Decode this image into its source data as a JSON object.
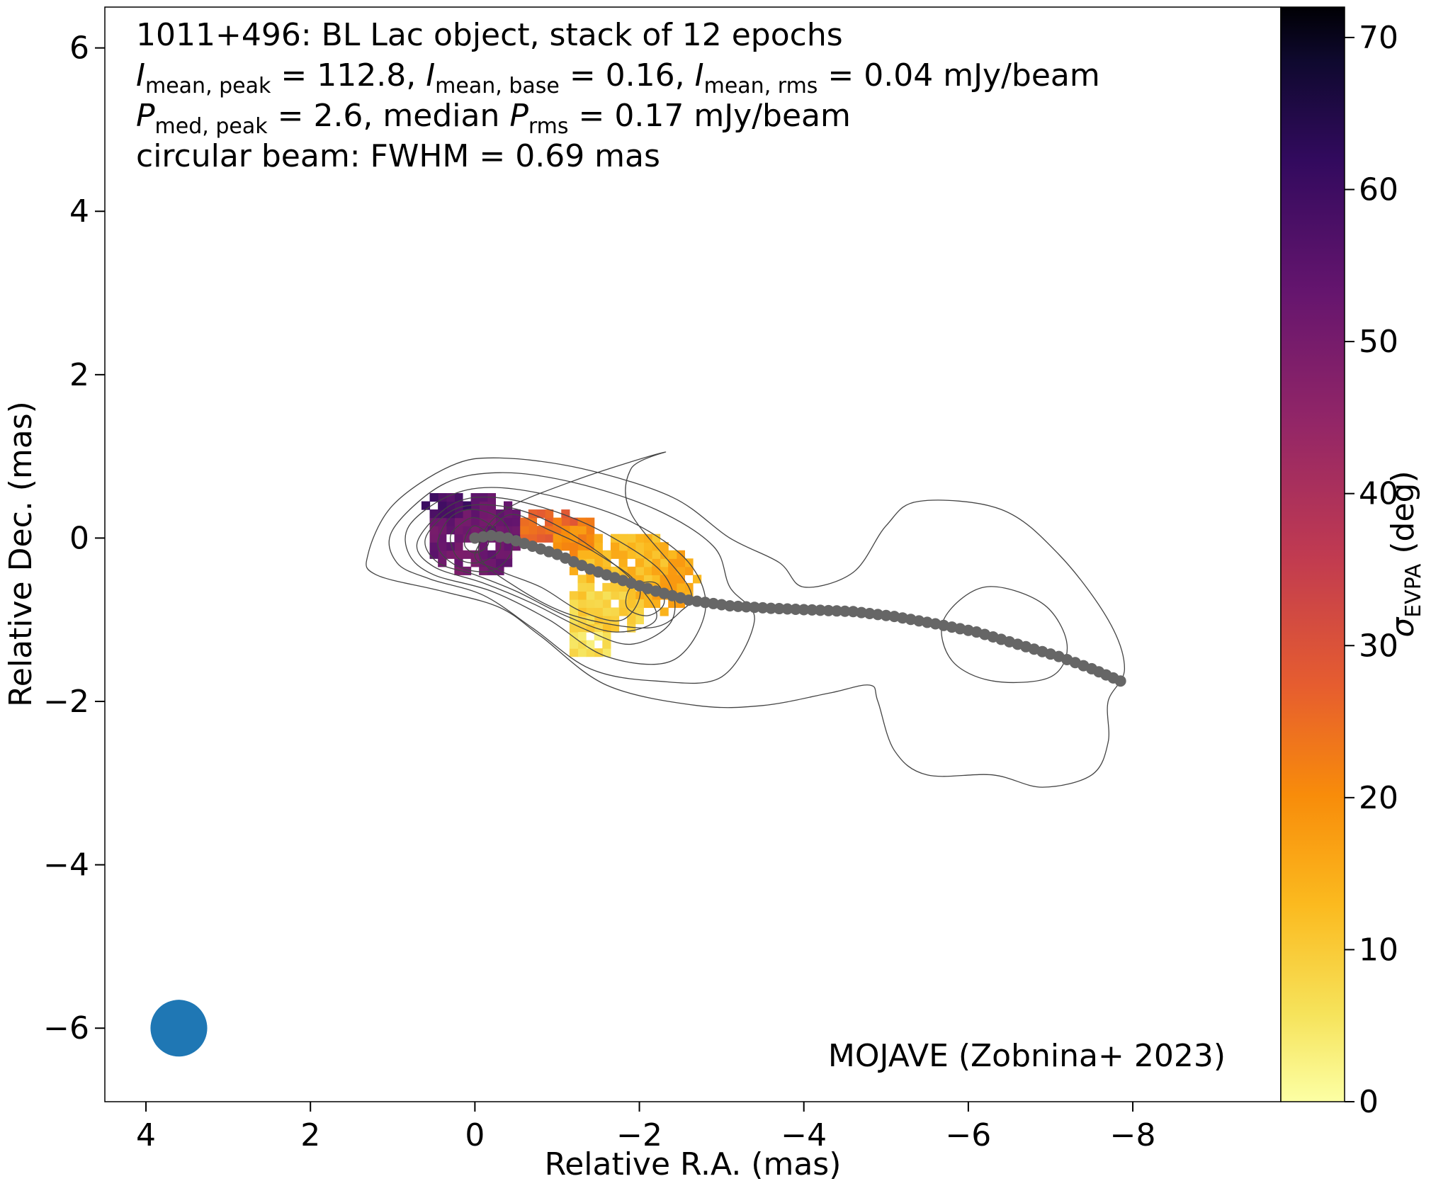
{
  "chart_data": {
    "type": "heatmap",
    "source_name": "1011+496",
    "info_lines": [
      "1011+496: BL Lac object, stack of 12 epochs",
      "I_mean,peak = 112.8, I_mean,base = 0.16, I_mean,rms = 0.04 mJy/beam",
      "P_med,peak = 2.6, median P_rms = 0.17 mJy/beam",
      "circular beam: FWHM = 0.69 mas"
    ],
    "info_parts": {
      "line1": "1011+496: BL Lac object, stack of 12 epochs",
      "I_sym": "I",
      "sub_peak": "mean, peak",
      "eq_peak": " = 112.8, ",
      "sub_base": "mean, base",
      "eq_base": " = 0.16, ",
      "sub_rms": "mean, rms",
      "eq_rms": " = 0.04 mJy/beam",
      "P_sym": "P",
      "sub_pmed": "med, peak",
      "eq_pmed": " = 2.6, median ",
      "sub_prms": "rms",
      "eq_prms": " = 0.17 mJy/beam",
      "line4": "circular beam: FWHM = 0.69 mas"
    },
    "credit": "MOJAVE (Zobnina+ 2023)",
    "xlabel": "Relative R.A. (mas)",
    "ylabel": "Relative Dec. (mas)",
    "colorbar_label": "σ",
    "colorbar_label_sub": "EVPA",
    "colorbar_label_unit": " (deg)",
    "x_axis_reversed": true,
    "xlim": [
      4.5,
      -9.8
    ],
    "ylim": [
      -6.9,
      6.5
    ],
    "xticks": [
      4,
      2,
      0,
      -2,
      -4,
      -6,
      -8
    ],
    "yticks": [
      -6,
      -4,
      -2,
      0,
      2,
      4,
      6
    ],
    "colorbar_range": [
      0,
      72
    ],
    "colorbar_ticks": [
      0,
      10,
      20,
      30,
      40,
      50,
      60,
      70
    ],
    "colormap": "inferno_r",
    "beam": {
      "x": 3.6,
      "y": -6.0,
      "fwhm_mas": 0.69,
      "color": "#1f77b4"
    },
    "colors": {
      "ridgeline": "#666666",
      "contours": "#444444",
      "beam": "#1f77b4"
    },
    "ridgeline": [
      [
        0.0,
        0.0
      ],
      [
        -0.2,
        0.03
      ],
      [
        -0.4,
        0.0
      ],
      [
        -0.7,
        -0.1
      ],
      [
        -1.0,
        -0.2
      ],
      [
        -1.4,
        -0.38
      ],
      [
        -1.8,
        -0.52
      ],
      [
        -2.2,
        -0.65
      ],
      [
        -2.6,
        -0.76
      ],
      [
        -3.1,
        -0.83
      ],
      [
        -3.6,
        -0.86
      ],
      [
        -4.1,
        -0.88
      ],
      [
        -4.6,
        -0.9
      ],
      [
        -5.1,
        -0.96
      ],
      [
        -5.6,
        -1.05
      ],
      [
        -6.1,
        -1.15
      ],
      [
        -6.6,
        -1.3
      ],
      [
        -7.1,
        -1.45
      ],
      [
        -7.5,
        -1.6
      ],
      [
        -7.85,
        -1.75
      ]
    ],
    "contours": [
      [
        [
          -2.3,
          1.05
        ],
        [
          -1.2,
          0.7
        ],
        [
          -0.3,
          0.3
        ],
        [
          -0.05,
          -0.2
        ],
        [
          -0.5,
          -0.6
        ],
        [
          -1.2,
          -0.95
        ],
        [
          -2.1,
          -1.1
        ],
        [
          -2.5,
          -0.9
        ],
        [
          -2.6,
          -0.6
        ],
        [
          -1.9,
          0.3
        ],
        [
          -1.9,
          0.85
        ],
        [
          -2.3,
          1.05
        ]
      ],
      [
        [
          0.3,
          0.88
        ],
        [
          -0.3,
          0.98
        ],
        [
          -1.3,
          0.85
        ],
        [
          -2.4,
          0.5
        ],
        [
          -3.1,
          0.0
        ],
        [
          -3.7,
          -0.3
        ],
        [
          -4.0,
          -0.6
        ],
        [
          -4.6,
          -0.42
        ],
        [
          -5.0,
          0.15
        ],
        [
          -5.4,
          0.45
        ],
        [
          -6.4,
          0.35
        ],
        [
          -7.1,
          -0.2
        ],
        [
          -7.7,
          -1.0
        ],
        [
          -7.9,
          -1.6
        ],
        [
          -7.7,
          -2.0
        ],
        [
          -7.7,
          -2.5
        ],
        [
          -7.5,
          -2.9
        ],
        [
          -6.9,
          -3.05
        ],
        [
          -6.3,
          -2.9
        ],
        [
          -5.5,
          -2.9
        ],
        [
          -5.1,
          -2.6
        ],
        [
          -4.9,
          -2.0
        ],
        [
          -4.8,
          -1.8
        ],
        [
          -4.3,
          -1.9
        ],
        [
          -3.5,
          -2.05
        ],
        [
          -2.7,
          -2.05
        ],
        [
          -1.6,
          -1.8
        ],
        [
          -0.8,
          -1.2
        ],
        [
          -0.3,
          -0.85
        ],
        [
          0.4,
          -0.65
        ],
        [
          1.2,
          -0.45
        ],
        [
          1.3,
          -0.2
        ],
        [
          1.0,
          0.4
        ],
        [
          0.3,
          0.88
        ]
      ],
      [
        [
          0.4,
          0.65
        ],
        [
          -0.3,
          0.8
        ],
        [
          -1.2,
          0.68
        ],
        [
          -2.2,
          0.35
        ],
        [
          -2.9,
          -0.1
        ],
        [
          -3.1,
          -0.6
        ],
        [
          -3.4,
          -1.0
        ],
        [
          -3.0,
          -1.7
        ],
        [
          -2.2,
          -1.75
        ],
        [
          -1.4,
          -1.6
        ],
        [
          -0.7,
          -1.1
        ],
        [
          -0.1,
          -0.7
        ],
        [
          0.55,
          -0.5
        ],
        [
          0.95,
          -0.3
        ],
        [
          1.0,
          0.1
        ],
        [
          0.4,
          0.65
        ]
      ],
      [
        [
          0.35,
          0.5
        ],
        [
          -0.2,
          0.62
        ],
        [
          -1.0,
          0.5
        ],
        [
          -1.9,
          0.2
        ],
        [
          -2.6,
          -0.3
        ],
        [
          -2.8,
          -0.9
        ],
        [
          -2.4,
          -1.5
        ],
        [
          -1.6,
          -1.45
        ],
        [
          -0.9,
          -1.0
        ],
        [
          -0.2,
          -0.65
        ],
        [
          0.5,
          -0.45
        ],
        [
          0.8,
          -0.2
        ],
        [
          0.8,
          0.15
        ],
        [
          0.35,
          0.5
        ]
      ],
      [
        [
          0.3,
          0.4
        ],
        [
          -0.2,
          0.5
        ],
        [
          -0.9,
          0.35
        ],
        [
          -1.6,
          0.05
        ],
        [
          -2.3,
          -0.45
        ],
        [
          -2.4,
          -1.0
        ],
        [
          -1.9,
          -1.3
        ],
        [
          -1.3,
          -1.1
        ],
        [
          -0.7,
          -0.8
        ],
        [
          -0.1,
          -0.55
        ],
        [
          0.5,
          -0.35
        ],
        [
          0.7,
          -0.05
        ],
        [
          0.3,
          0.4
        ]
      ],
      [
        [
          0.25,
          0.35
        ],
        [
          -0.25,
          0.4
        ],
        [
          -0.8,
          0.25
        ],
        [
          -1.4,
          -0.1
        ],
        [
          -2.0,
          -0.6
        ],
        [
          -2.2,
          -1.0
        ],
        [
          -1.7,
          -1.15
        ],
        [
          -1.1,
          -0.95
        ],
        [
          -0.5,
          -0.65
        ],
        [
          0.0,
          -0.45
        ],
        [
          0.45,
          -0.3
        ],
        [
          0.6,
          0.0
        ],
        [
          0.25,
          0.35
        ]
      ],
      [
        [
          -0.4,
          0.28
        ],
        [
          -0.9,
          0.1
        ],
        [
          -1.5,
          -0.2
        ],
        [
          -2.0,
          -0.6
        ],
        [
          -1.8,
          -1.0
        ],
        [
          -1.3,
          -0.9
        ],
        [
          -0.8,
          -0.6
        ],
        [
          -0.3,
          -0.4
        ],
        [
          0.0,
          -0.2
        ],
        [
          -0.4,
          0.28
        ]
      ],
      [
        [
          0.3,
          0.25
        ],
        [
          0.0,
          0.35
        ],
        [
          -0.35,
          0.2
        ],
        [
          -0.45,
          -0.15
        ],
        [
          -0.2,
          -0.4
        ],
        [
          0.2,
          -0.35
        ],
        [
          0.45,
          -0.1
        ],
        [
          0.3,
          0.25
        ]
      ],
      [
        [
          0.2,
          0.15
        ],
        [
          0.0,
          0.25
        ],
        [
          -0.25,
          0.1
        ],
        [
          -0.3,
          -0.15
        ],
        [
          -0.05,
          -0.3
        ],
        [
          0.2,
          -0.25
        ],
        [
          0.3,
          0.0
        ],
        [
          0.2,
          0.15
        ]
      ],
      [
        [
          0.1,
          0.05
        ],
        [
          0.0,
          0.15
        ],
        [
          -0.15,
          0.05
        ],
        [
          -0.15,
          -0.1
        ],
        [
          0.0,
          -0.18
        ],
        [
          0.12,
          -0.1
        ],
        [
          0.1,
          0.05
        ]
      ],
      [
        [
          -1.9,
          -0.6
        ],
        [
          -2.2,
          -0.55
        ],
        [
          -2.3,
          -0.8
        ],
        [
          -2.1,
          -0.95
        ],
        [
          -1.85,
          -0.85
        ],
        [
          -1.9,
          -0.6
        ]
      ],
      [
        [
          -6.2,
          -0.6
        ],
        [
          -6.9,
          -0.8
        ],
        [
          -7.2,
          -1.3
        ],
        [
          -7.0,
          -1.7
        ],
        [
          -6.3,
          -1.75
        ],
        [
          -5.8,
          -1.5
        ],
        [
          -5.7,
          -1.0
        ],
        [
          -6.2,
          -0.6
        ]
      ]
    ],
    "heatmap_blobs": [
      {
        "x": 0.0,
        "y": 0.05,
        "rx": 0.58,
        "ry": 0.52,
        "value": 52
      },
      {
        "x": 0.35,
        "y": 0.4,
        "rx": 0.25,
        "ry": 0.2,
        "value": 58
      },
      {
        "x": -0.8,
        "y": 0.15,
        "rx": 0.45,
        "ry": 0.3,
        "value": 26
      },
      {
        "x": -1.2,
        "y": 0.05,
        "rx": 0.3,
        "ry": 0.25,
        "value": 20
      },
      {
        "x": -1.8,
        "y": -0.3,
        "rx": 0.65,
        "ry": 0.35,
        "value": 13
      },
      {
        "x": -2.3,
        "y": -0.5,
        "rx": 0.4,
        "ry": 0.4,
        "value": 16
      },
      {
        "x": -1.6,
        "y": -0.9,
        "rx": 0.5,
        "ry": 0.35,
        "value": 9
      },
      {
        "x": -1.4,
        "y": -1.25,
        "rx": 0.3,
        "ry": 0.3,
        "value": 6
      }
    ]
  }
}
